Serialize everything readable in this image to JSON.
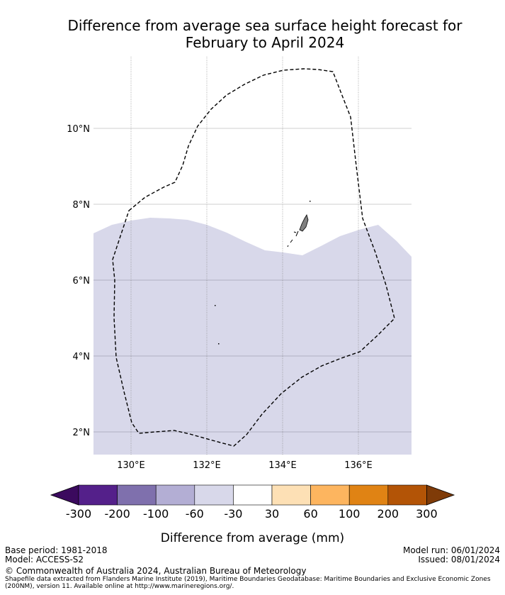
{
  "title": {
    "line1": "Difference from average sea surface height forecast for",
    "line2": "February to April 2024"
  },
  "map": {
    "longitude_ticks": [
      "130°E",
      "132°E",
      "134°E",
      "136°E"
    ],
    "latitude_ticks": [
      "10°N",
      "8°N",
      "6°N",
      "4°N",
      "2°N"
    ],
    "ocean_fill_color": "#d8d8ea",
    "shaded_category": "-60 to -30",
    "land_color": "#808080"
  },
  "colorbar": {
    "colors": [
      "#3b0a5e",
      "#54208a",
      "#7f70ad",
      "#b3aed4",
      "#d8d8ea",
      "#ffffff",
      "#fde0b5",
      "#fdb55f",
      "#e08314",
      "#b35406",
      "#7f3b08"
    ],
    "tick_labels": [
      "-300",
      "-200",
      "-100",
      "-60",
      "-30",
      "30",
      "60",
      "100",
      "200",
      "300"
    ],
    "label": "Difference from average (mm)"
  },
  "footer": {
    "base_period": "Base period: 1981-2018",
    "model": "Model: ACCESS-S2",
    "model_run": "Model run: 06/01/2024",
    "issued": "Issued: 08/01/2024",
    "copyright": "© Commonwealth of Australia 2024, Australian Bureau of Meteorology",
    "shapefile_note": "Shapefile data extracted from Flanders Marine Institute (2019), Maritime Boundaries Geodatabase: Maritime Boundaries and Exclusive Economic Zones (200NM), version 11. Available online at http://www.marineregions.org/."
  }
}
